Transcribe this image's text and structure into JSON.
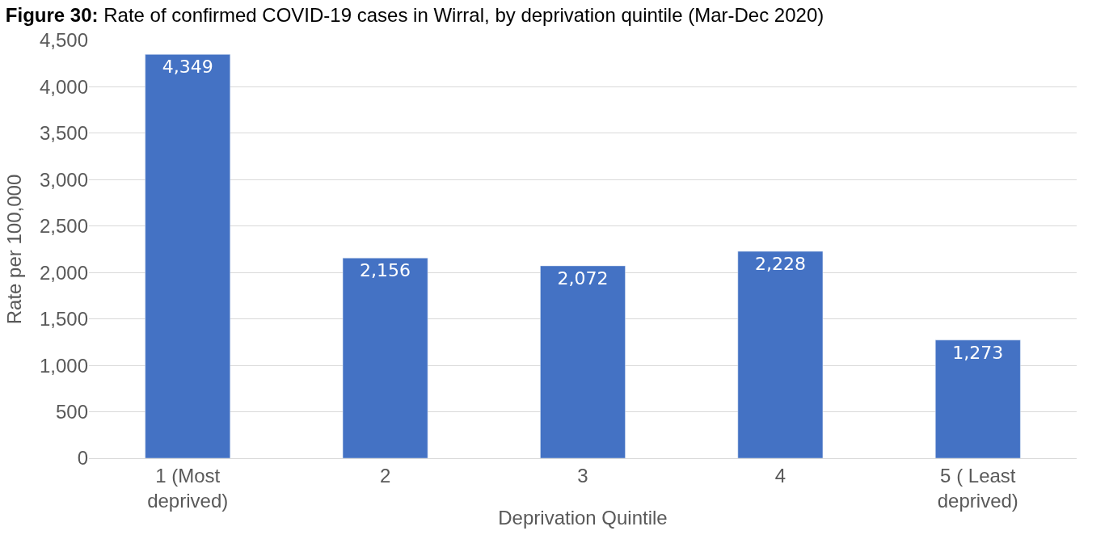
{
  "chart_data": {
    "type": "bar",
    "title": "Figure 30: Rate of confirmed COVID-19 cases in Wirral, by deprivation quintile (Mar-Dec 2020)",
    "xlabel": "Deprivation Quintile",
    "ylabel": "Rate per 100,000",
    "categories": [
      "1 (Most\ndeprived)",
      "2",
      "3",
      "4",
      "5 ( Least\ndeprived)"
    ],
    "values": [
      4349,
      2156,
      2072,
      2228,
      1273
    ],
    "value_labels": [
      "4,349",
      "2,156",
      "2,072",
      "2,228",
      "1,273"
    ],
    "color": "#4472c4",
    "ylim": [
      0,
      4500
    ],
    "yticks": [
      {
        "value": 0,
        "label": "0"
      },
      {
        "value": 500,
        "label": "500"
      },
      {
        "value": 1000,
        "label": "1,000"
      },
      {
        "value": 1500,
        "label": "1,500"
      },
      {
        "value": 2000,
        "label": "2,000"
      },
      {
        "value": 2500,
        "label": "2,500"
      },
      {
        "value": 3000,
        "label": "3,000"
      },
      {
        "value": 3500,
        "label": "3,500"
      },
      {
        "value": 4000,
        "label": "4,000"
      },
      {
        "value": 4500,
        "label": "4,500"
      }
    ],
    "grid": "y",
    "legend": false
  }
}
